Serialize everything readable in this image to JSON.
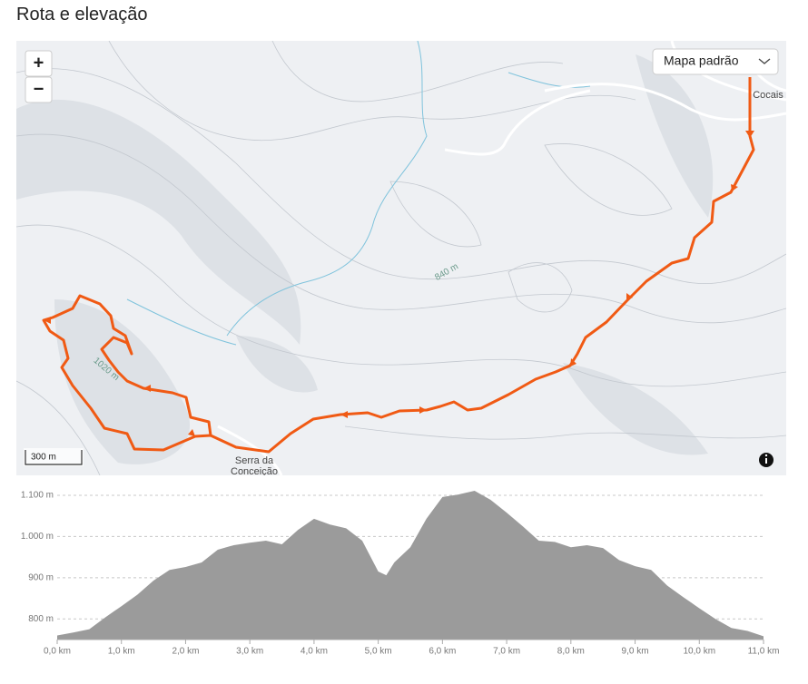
{
  "header": {
    "title": "Rota e elevação"
  },
  "map": {
    "zoom_in": "+",
    "zoom_out": "−",
    "style": "Mapa padrão",
    "scale": "300 m",
    "places": [
      "Cocais",
      "Serra da",
      "Conceição"
    ],
    "contours": [
      "840 m",
      "1020 m"
    ]
  },
  "chart_data": {
    "type": "area",
    "x": [
      0,
      0.25,
      0.5,
      0.75,
      1,
      1.25,
      1.5,
      1.75,
      2,
      2.25,
      2.5,
      2.75,
      3,
      3.25,
      3.5,
      3.75,
      4,
      4.25,
      4.5,
      4.75,
      5,
      5.125,
      5.25,
      5.5,
      5.75,
      6,
      6.25,
      6.5,
      6.75,
      7,
      7.25,
      7.5,
      7.75,
      8,
      8.25,
      8.5,
      8.75,
      9,
      9.25,
      9.5,
      9.75,
      10,
      10.25,
      10.5,
      10.75,
      11
    ],
    "values": [
      760,
      767,
      775,
      804,
      831,
      859,
      893,
      919,
      926,
      937,
      968,
      979,
      985,
      990,
      981,
      1016,
      1043,
      1029,
      1020,
      990,
      915,
      906,
      937,
      974,
      1043,
      1096,
      1102,
      1111,
      1089,
      1058,
      1025,
      990,
      987,
      974,
      979,
      972,
      943,
      928,
      919,
      881,
      853,
      826,
      800,
      778,
      771,
      758
    ],
    "color": "#9b9b9b",
    "xlim": [
      0,
      11
    ],
    "ylim": [
      750,
      1100
    ],
    "xticks": [
      {
        "value": 0,
        "label": "0,0 km"
      },
      {
        "value": 1,
        "label": "1,0 km"
      },
      {
        "value": 2,
        "label": "2,0 km"
      },
      {
        "value": 3,
        "label": "3,0 km"
      },
      {
        "value": 4,
        "label": "4,0 km"
      },
      {
        "value": 5,
        "label": "5,0 km"
      },
      {
        "value": 6,
        "label": "6,0 km"
      },
      {
        "value": 7,
        "label": "7,0 km"
      },
      {
        "value": 8,
        "label": "8,0 km"
      },
      {
        "value": 9,
        "label": "9,0 km"
      },
      {
        "value": 10,
        "label": "10,0 km"
      },
      {
        "value": 11,
        "label": "11,0 km"
      }
    ],
    "yticks": [
      {
        "value": 800,
        "label": "800 m"
      },
      {
        "value": 900,
        "label": "900 m"
      },
      {
        "value": 1000,
        "label": "1.000 m"
      },
      {
        "value": 1100,
        "label": "1.100 m"
      }
    ],
    "grid": true
  }
}
